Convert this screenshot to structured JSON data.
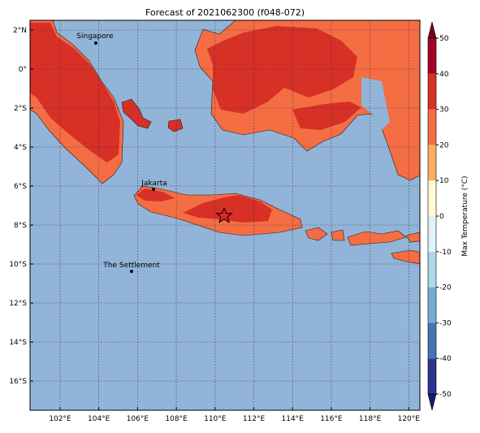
{
  "title": "Forecast of 2021062300 (f048-072)",
  "map": {
    "lat_ticks": [
      {
        "value": 2,
        "label": "2°N"
      },
      {
        "value": 0,
        "label": "0°"
      },
      {
        "value": -2,
        "label": "2°S"
      },
      {
        "value": -4,
        "label": "4°S"
      },
      {
        "value": -6,
        "label": "6°S"
      },
      {
        "value": -8,
        "label": "8°S"
      },
      {
        "value": -10,
        "label": "10°S"
      },
      {
        "value": -12,
        "label": "12°S"
      },
      {
        "value": -14,
        "label": "14°S"
      },
      {
        "value": -16,
        "label": "16°S"
      }
    ],
    "lon_ticks": [
      {
        "value": 102,
        "label": "102°E"
      },
      {
        "value": 104,
        "label": "104°E"
      },
      {
        "value": 106,
        "label": "106°E"
      },
      {
        "value": 108,
        "label": "108°E"
      },
      {
        "value": 110,
        "label": "110°E"
      },
      {
        "value": 112,
        "label": "112°E"
      },
      {
        "value": 114,
        "label": "114°E"
      },
      {
        "value": 116,
        "label": "116°E"
      },
      {
        "value": 118,
        "label": "118°E"
      },
      {
        "value": 120,
        "label": "120°E"
      }
    ],
    "places": [
      "Singapore",
      "Jakarta",
      "The Settlement"
    ]
  },
  "colorbar": {
    "label": "Max Temperature (°C)",
    "ticks": [
      -50,
      -40,
      -30,
      -20,
      -10,
      0,
      10,
      20,
      30,
      40,
      50
    ],
    "colors": [
      "#2b3591",
      "#4575b4",
      "#74add1",
      "#abd9e9",
      "#e0f3f8",
      "#fffbd4",
      "#fdae61",
      "#f46d43",
      "#d73027",
      "#a50026"
    ],
    "under_color": "#1c1a70",
    "over_color": "#7a0020"
  }
}
